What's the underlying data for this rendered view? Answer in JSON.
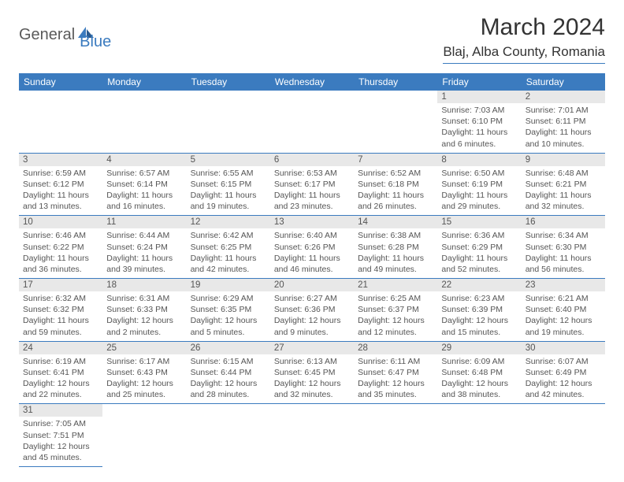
{
  "logo": {
    "general": "General",
    "blue": "Blue"
  },
  "title": "March 2024",
  "location": "Blaj, Alba County, Romania",
  "colors": {
    "header_bg": "#3b7bbf",
    "header_text": "#ffffff",
    "daynum_bg": "#e8e8e8",
    "text": "#555555",
    "border": "#3b7bbf"
  },
  "weekdays": [
    "Sunday",
    "Monday",
    "Tuesday",
    "Wednesday",
    "Thursday",
    "Friday",
    "Saturday"
  ],
  "days": {
    "1": {
      "sunrise": "7:03 AM",
      "sunset": "6:10 PM",
      "dlh": 11,
      "dlm": 6
    },
    "2": {
      "sunrise": "7:01 AM",
      "sunset": "6:11 PM",
      "dlh": 11,
      "dlm": 10
    },
    "3": {
      "sunrise": "6:59 AM",
      "sunset": "6:12 PM",
      "dlh": 11,
      "dlm": 13
    },
    "4": {
      "sunrise": "6:57 AM",
      "sunset": "6:14 PM",
      "dlh": 11,
      "dlm": 16
    },
    "5": {
      "sunrise": "6:55 AM",
      "sunset": "6:15 PM",
      "dlh": 11,
      "dlm": 19
    },
    "6": {
      "sunrise": "6:53 AM",
      "sunset": "6:17 PM",
      "dlh": 11,
      "dlm": 23
    },
    "7": {
      "sunrise": "6:52 AM",
      "sunset": "6:18 PM",
      "dlh": 11,
      "dlm": 26
    },
    "8": {
      "sunrise": "6:50 AM",
      "sunset": "6:19 PM",
      "dlh": 11,
      "dlm": 29
    },
    "9": {
      "sunrise": "6:48 AM",
      "sunset": "6:21 PM",
      "dlh": 11,
      "dlm": 32
    },
    "10": {
      "sunrise": "6:46 AM",
      "sunset": "6:22 PM",
      "dlh": 11,
      "dlm": 36
    },
    "11": {
      "sunrise": "6:44 AM",
      "sunset": "6:24 PM",
      "dlh": 11,
      "dlm": 39
    },
    "12": {
      "sunrise": "6:42 AM",
      "sunset": "6:25 PM",
      "dlh": 11,
      "dlm": 42
    },
    "13": {
      "sunrise": "6:40 AM",
      "sunset": "6:26 PM",
      "dlh": 11,
      "dlm": 46
    },
    "14": {
      "sunrise": "6:38 AM",
      "sunset": "6:28 PM",
      "dlh": 11,
      "dlm": 49
    },
    "15": {
      "sunrise": "6:36 AM",
      "sunset": "6:29 PM",
      "dlh": 11,
      "dlm": 52
    },
    "16": {
      "sunrise": "6:34 AM",
      "sunset": "6:30 PM",
      "dlh": 11,
      "dlm": 56
    },
    "17": {
      "sunrise": "6:32 AM",
      "sunset": "6:32 PM",
      "dlh": 11,
      "dlm": 59
    },
    "18": {
      "sunrise": "6:31 AM",
      "sunset": "6:33 PM",
      "dlh": 12,
      "dlm": 2
    },
    "19": {
      "sunrise": "6:29 AM",
      "sunset": "6:35 PM",
      "dlh": 12,
      "dlm": 5
    },
    "20": {
      "sunrise": "6:27 AM",
      "sunset": "6:36 PM",
      "dlh": 12,
      "dlm": 9
    },
    "21": {
      "sunrise": "6:25 AM",
      "sunset": "6:37 PM",
      "dlh": 12,
      "dlm": 12
    },
    "22": {
      "sunrise": "6:23 AM",
      "sunset": "6:39 PM",
      "dlh": 12,
      "dlm": 15
    },
    "23": {
      "sunrise": "6:21 AM",
      "sunset": "6:40 PM",
      "dlh": 12,
      "dlm": 19
    },
    "24": {
      "sunrise": "6:19 AM",
      "sunset": "6:41 PM",
      "dlh": 12,
      "dlm": 22
    },
    "25": {
      "sunrise": "6:17 AM",
      "sunset": "6:43 PM",
      "dlh": 12,
      "dlm": 25
    },
    "26": {
      "sunrise": "6:15 AM",
      "sunset": "6:44 PM",
      "dlh": 12,
      "dlm": 28
    },
    "27": {
      "sunrise": "6:13 AM",
      "sunset": "6:45 PM",
      "dlh": 12,
      "dlm": 32
    },
    "28": {
      "sunrise": "6:11 AM",
      "sunset": "6:47 PM",
      "dlh": 12,
      "dlm": 35
    },
    "29": {
      "sunrise": "6:09 AM",
      "sunset": "6:48 PM",
      "dlh": 12,
      "dlm": 38
    },
    "30": {
      "sunrise": "6:07 AM",
      "sunset": "6:49 PM",
      "dlh": 12,
      "dlm": 42
    },
    "31": {
      "sunrise": "7:05 AM",
      "sunset": "7:51 PM",
      "dlh": 12,
      "dlm": 45
    }
  },
  "grid": [
    [
      null,
      null,
      null,
      null,
      null,
      "1",
      "2"
    ],
    [
      "3",
      "4",
      "5",
      "6",
      "7",
      "8",
      "9"
    ],
    [
      "10",
      "11",
      "12",
      "13",
      "14",
      "15",
      "16"
    ],
    [
      "17",
      "18",
      "19",
      "20",
      "21",
      "22",
      "23"
    ],
    [
      "24",
      "25",
      "26",
      "27",
      "28",
      "29",
      "30"
    ],
    [
      "31",
      null,
      null,
      null,
      null,
      null,
      null
    ]
  ]
}
